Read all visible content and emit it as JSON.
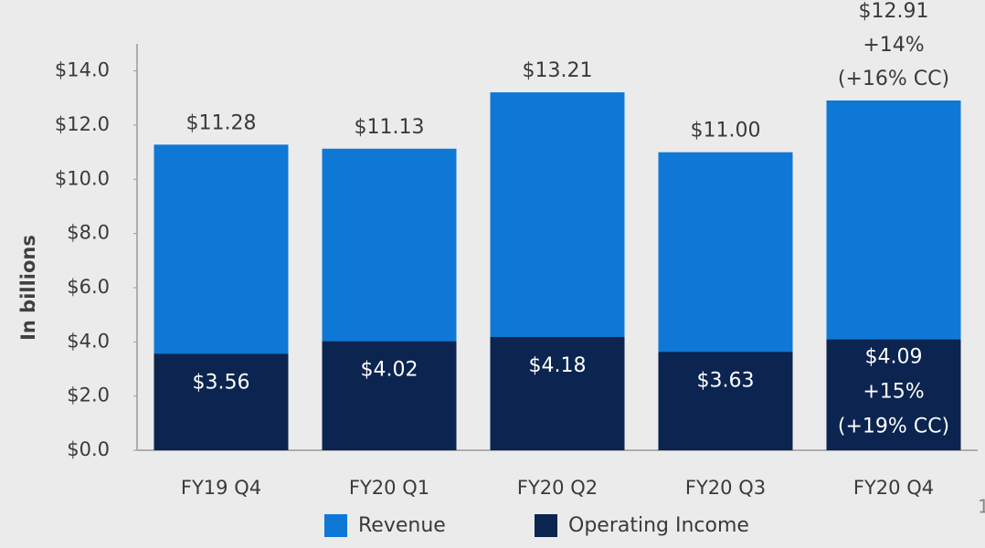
{
  "chart_data": {
    "type": "overlay_bar",
    "y_axis_label": "In billions",
    "categories": [
      "FY19 Q4",
      "FY20 Q1",
      "FY20 Q2",
      "FY20 Q3",
      "FY20 Q4"
    ],
    "series": [
      {
        "name": "Revenue",
        "color": "#0f78d6",
        "values": [
          11.28,
          11.13,
          13.21,
          11.0,
          12.91
        ],
        "value_labels": [
          "$11.28",
          "$11.13",
          "$13.21",
          "$11.00",
          "$12.91"
        ],
        "extra_labels": [
          null,
          null,
          null,
          null,
          [
            "+14%",
            "(+16% CC)"
          ]
        ]
      },
      {
        "name": "Operating Income",
        "color": "#0b2450",
        "values": [
          3.56,
          4.02,
          4.18,
          3.63,
          4.09
        ],
        "value_labels": [
          "$3.56",
          "$4.02",
          "$4.18",
          "$3.63",
          "$4.09"
        ],
        "extra_labels": [
          null,
          null,
          null,
          null,
          [
            "+15%",
            "(+19% CC)"
          ]
        ]
      }
    ],
    "ylim": [
      0,
      15
    ],
    "yticks": [
      {
        "value": 0,
        "label": "$0.0"
      },
      {
        "value": 2,
        "label": "$2.0"
      },
      {
        "value": 4,
        "label": "$4.0"
      },
      {
        "value": 6,
        "label": "$6.0"
      },
      {
        "value": 8,
        "label": "$8.0"
      },
      {
        "value": 10,
        "label": "$10.0"
      },
      {
        "value": 12,
        "label": "$12.0"
      },
      {
        "value": 14,
        "label": "$14.0"
      }
    ],
    "legend": "bottom",
    "page_number": "1"
  }
}
